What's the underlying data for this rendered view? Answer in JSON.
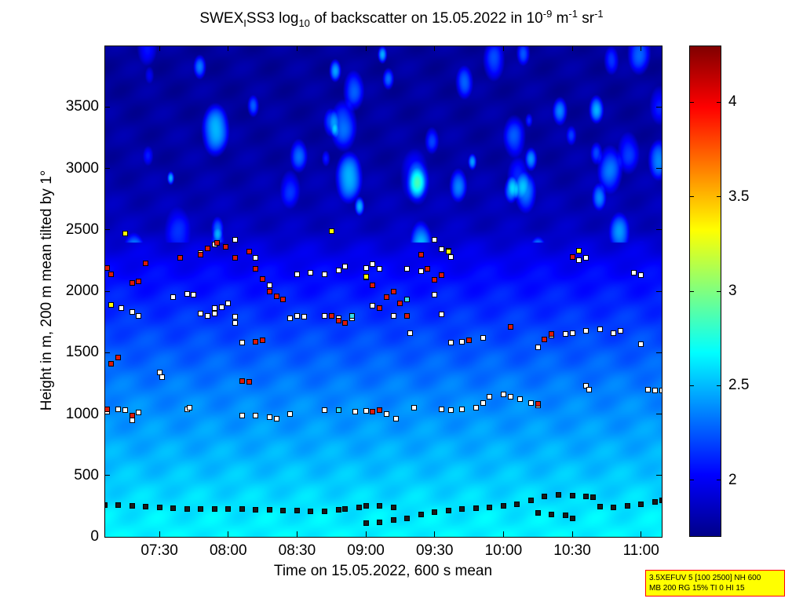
{
  "title": {
    "part1": "SWEX",
    "sub1": "I",
    "part2": "SS3 log",
    "sub2": "10",
    "part3": " of backscatter on 15.05.2022 in 10",
    "sup1": "-9",
    "part4": " m",
    "sup2": "-1",
    "part5": " sr",
    "sup3": "-1"
  },
  "xlabel": "Time on 15.05.2022, 600 s mean",
  "ylabel": "Height in m, 200 m mean tilted by 1°",
  "info_box": {
    "line1": "3.5XEFUV 5 [100 2500] NH 600",
    "line2": "MB 200 RG 15% TI 0 HI 15"
  },
  "chart_data": {
    "type": "heatmap",
    "x_unit": "time (hours of day)",
    "xlim": [
      7.1,
      11.15
    ],
    "ylim": [
      0,
      4000
    ],
    "x_ticks": [
      {
        "value": 7.5,
        "label": "07:30"
      },
      {
        "value": 8.0,
        "label": "08:00"
      },
      {
        "value": 8.5,
        "label": "08:30"
      },
      {
        "value": 9.0,
        "label": "09:00"
      },
      {
        "value": 9.5,
        "label": "09:30"
      },
      {
        "value": 10.0,
        "label": "10:00"
      },
      {
        "value": 10.5,
        "label": "10:30"
      },
      {
        "value": 11.0,
        "label": "11:00"
      }
    ],
    "y_ticks": [
      0,
      500,
      1000,
      1500,
      2000,
      2500,
      3000,
      3500
    ],
    "colorbar": {
      "range": [
        1.7,
        4.3
      ],
      "ticks": [
        2,
        2.5,
        3,
        3.5,
        4
      ],
      "colormap": "jet",
      "colors": [
        "#000089",
        "#0000ff",
        "#00ffff",
        "#ffff00",
        "#ff0000",
        "#800000"
      ]
    },
    "field_profile": [
      {
        "height": 0,
        "value": 2.65
      },
      {
        "height": 200,
        "value": 2.62
      },
      {
        "height": 400,
        "value": 2.56
      },
      {
        "height": 600,
        "value": 2.5
      },
      {
        "height": 900,
        "value": 2.42
      },
      {
        "height": 1200,
        "value": 2.35
      },
      {
        "height": 1500,
        "value": 2.25
      },
      {
        "height": 1800,
        "value": 2.15
      },
      {
        "height": 2100,
        "value": 2.05
      },
      {
        "height": 2300,
        "value": 1.96
      },
      {
        "height": 2500,
        "value": 1.85
      },
      {
        "height": 3000,
        "value": 1.78
      },
      {
        "height": 3500,
        "value": 1.76
      },
      {
        "height": 4000,
        "value": 1.75
      }
    ],
    "field_peaks": [
      {
        "height": 3800,
        "value": 2.45
      }
    ],
    "marker_series": [
      {
        "role": "lowest layer (black)",
        "color": "#1a1a1a",
        "points": [
          [
            7.1,
            260
          ],
          [
            7.2,
            260
          ],
          [
            7.3,
            255
          ],
          [
            7.4,
            248
          ],
          [
            7.5,
            240
          ],
          [
            7.6,
            232
          ],
          [
            7.7,
            228
          ],
          [
            7.8,
            226
          ],
          [
            7.9,
            226
          ],
          [
            8.0,
            226
          ],
          [
            8.1,
            224
          ],
          [
            8.2,
            222
          ],
          [
            8.3,
            220
          ],
          [
            8.4,
            215
          ],
          [
            8.5,
            212
          ],
          [
            8.6,
            210
          ],
          [
            8.7,
            210
          ],
          [
            8.8,
            220
          ],
          [
            8.85,
            225
          ],
          [
            8.95,
            240
          ],
          [
            9.0,
            250
          ],
          [
            9.1,
            250
          ],
          [
            9.2,
            240
          ],
          [
            9.0,
            115
          ],
          [
            9.1,
            120
          ],
          [
            9.2,
            135
          ],
          [
            9.3,
            150
          ],
          [
            9.4,
            180
          ],
          [
            9.5,
            200
          ],
          [
            9.6,
            215
          ],
          [
            9.7,
            225
          ],
          [
            9.8,
            235
          ],
          [
            9.9,
            240
          ],
          [
            10.0,
            250
          ],
          [
            10.1,
            265
          ],
          [
            10.2,
            300
          ],
          [
            10.3,
            330
          ],
          [
            10.4,
            340
          ],
          [
            10.5,
            335
          ],
          [
            10.6,
            330
          ],
          [
            10.65,
            320
          ],
          [
            10.7,
            245
          ],
          [
            10.8,
            240
          ],
          [
            10.9,
            250
          ],
          [
            11.0,
            265
          ],
          [
            11.1,
            285
          ],
          [
            11.15,
            300
          ],
          [
            10.25,
            195
          ],
          [
            10.35,
            185
          ],
          [
            10.45,
            175
          ],
          [
            10.5,
            150
          ]
        ]
      },
      {
        "role": "cloud/aerosol layer markers (white)",
        "color": "#ffffff",
        "points": [
          [
            7.12,
            1020
          ],
          [
            7.2,
            1040
          ],
          [
            7.25,
            1030
          ],
          [
            7.3,
            950
          ],
          [
            7.35,
            1010
          ],
          [
            7.5,
            1340
          ],
          [
            7.52,
            1300
          ],
          [
            7.7,
            1040
          ],
          [
            7.72,
            1050
          ],
          [
            8.1,
            990
          ],
          [
            8.2,
            985
          ],
          [
            8.3,
            975
          ],
          [
            8.35,
            960
          ],
          [
            8.45,
            1000
          ],
          [
            8.7,
            1030
          ],
          [
            8.8,
            1030
          ],
          [
            8.92,
            1020
          ],
          [
            9.0,
            1025
          ],
          [
            9.15,
            1000
          ],
          [
            9.22,
            960
          ],
          [
            9.35,
            1050
          ],
          [
            9.55,
            1040
          ],
          [
            9.62,
            1030
          ],
          [
            9.7,
            1040
          ],
          [
            9.8,
            1050
          ],
          [
            9.85,
            1090
          ],
          [
            9.9,
            1140
          ],
          [
            10.0,
            1160
          ],
          [
            10.05,
            1140
          ],
          [
            10.12,
            1120
          ],
          [
            10.2,
            1090
          ],
          [
            10.25,
            1070
          ],
          [
            10.6,
            1230
          ],
          [
            10.62,
            1200
          ],
          [
            11.05,
            1200
          ],
          [
            11.1,
            1190
          ],
          [
            11.15,
            1190
          ],
          [
            7.22,
            1860
          ],
          [
            7.3,
            1830
          ],
          [
            7.35,
            1800
          ],
          [
            7.6,
            1950
          ],
          [
            7.7,
            1980
          ],
          [
            7.75,
            1970
          ],
          [
            7.8,
            1820
          ],
          [
            7.85,
            1800
          ],
          [
            7.9,
            1820
          ],
          [
            7.95,
            1870
          ],
          [
            8.0,
            1900
          ],
          [
            8.05,
            1740
          ],
          [
            8.5,
            1800
          ],
          [
            8.55,
            1790
          ],
          [
            8.7,
            1800
          ],
          [
            8.8,
            1780
          ],
          [
            8.9,
            1780
          ],
          [
            9.05,
            1880
          ],
          [
            9.2,
            1800
          ],
          [
            9.32,
            1660
          ],
          [
            9.55,
            1810
          ],
          [
            9.62,
            1580
          ],
          [
            9.7,
            1590
          ],
          [
            9.85,
            1620
          ],
          [
            10.25,
            1540
          ],
          [
            10.5,
            1660
          ],
          [
            10.6,
            1680
          ],
          [
            10.7,
            1690
          ],
          [
            10.8,
            1660
          ],
          [
            10.85,
            1680
          ],
          [
            11.0,
            1570
          ],
          [
            7.8,
            2310
          ],
          [
            7.9,
            2380
          ],
          [
            8.05,
            2420
          ],
          [
            8.2,
            2270
          ],
          [
            8.3,
            2050
          ],
          [
            8.5,
            2140
          ],
          [
            8.6,
            2150
          ],
          [
            8.7,
            2140
          ],
          [
            8.8,
            2170
          ],
          [
            8.85,
            2200
          ],
          [
            9.0,
            2190
          ],
          [
            9.05,
            2220
          ],
          [
            9.1,
            2180
          ],
          [
            9.3,
            2180
          ],
          [
            9.4,
            2160
          ],
          [
            9.5,
            2420
          ],
          [
            9.55,
            2340
          ],
          [
            9.6,
            2330
          ],
          [
            9.62,
            2280
          ],
          [
            10.55,
            2250
          ],
          [
            10.6,
            2270
          ],
          [
            10.95,
            2150
          ],
          [
            11.0,
            2130
          ],
          [
            7.9,
            1860
          ],
          [
            8.05,
            1790
          ],
          [
            8.1,
            1580
          ],
          [
            8.45,
            1780
          ],
          [
            9.5,
            1970
          ],
          [
            10.35,
            1640
          ],
          [
            10.45,
            1650
          ]
        ]
      },
      {
        "role": "strong backscatter markers (red)",
        "color": "#dd1a0a",
        "points": [
          [
            7.12,
            1040
          ],
          [
            7.3,
            990
          ],
          [
            7.15,
            1410
          ],
          [
            7.2,
            1460
          ],
          [
            7.12,
            2190
          ],
          [
            7.15,
            2140
          ],
          [
            7.3,
            2070
          ],
          [
            7.35,
            2080
          ],
          [
            7.4,
            2230
          ],
          [
            7.65,
            2270
          ],
          [
            7.8,
            2300
          ],
          [
            7.85,
            2350
          ],
          [
            7.92,
            2390
          ],
          [
            7.98,
            2360
          ],
          [
            8.05,
            2270
          ],
          [
            8.15,
            2320
          ],
          [
            8.2,
            2180
          ],
          [
            8.25,
            2100
          ],
          [
            8.3,
            2000
          ],
          [
            8.35,
            1960
          ],
          [
            8.4,
            1930
          ],
          [
            8.1,
            1270
          ],
          [
            8.15,
            1260
          ],
          [
            8.2,
            1590
          ],
          [
            8.25,
            1600
          ],
          [
            8.75,
            1800
          ],
          [
            8.8,
            1760
          ],
          [
            8.85,
            1740
          ],
          [
            9.0,
            2110
          ],
          [
            9.05,
            2050
          ],
          [
            9.1,
            1860
          ],
          [
            9.15,
            1950
          ],
          [
            9.2,
            2000
          ],
          [
            9.25,
            1900
          ],
          [
            9.3,
            1800
          ],
          [
            9.4,
            2300
          ],
          [
            9.45,
            2180
          ],
          [
            9.5,
            2090
          ],
          [
            9.55,
            2130
          ],
          [
            9.75,
            1600
          ],
          [
            10.05,
            1710
          ],
          [
            10.3,
            1610
          ],
          [
            10.35,
            1650
          ],
          [
            10.5,
            2280
          ],
          [
            9.05,
            1020
          ],
          [
            9.1,
            1030
          ],
          [
            10.25,
            1080
          ]
        ]
      },
      {
        "role": "very strong backscatter markers (yellow)",
        "color": "#ffff00",
        "points": [
          [
            7.25,
            2470
          ],
          [
            7.15,
            1890
          ],
          [
            8.75,
            2490
          ],
          [
            9.0,
            2120
          ],
          [
            9.6,
            2320
          ],
          [
            10.55,
            2330
          ]
        ]
      },
      {
        "role": "intermediate markers (cyan)",
        "color": "#33ddee",
        "points": [
          [
            8.9,
            1800
          ],
          [
            9.3,
            1930
          ],
          [
            8.8,
            1030
          ]
        ]
      }
    ]
  },
  "tick_marks": {
    "x": [
      7.5,
      8.0,
      8.5,
      9.0,
      9.5,
      10.0,
      10.5,
      11.0
    ],
    "y": [
      0,
      500,
      1000,
      1500,
      2000,
      2500,
      3000,
      3500
    ]
  }
}
